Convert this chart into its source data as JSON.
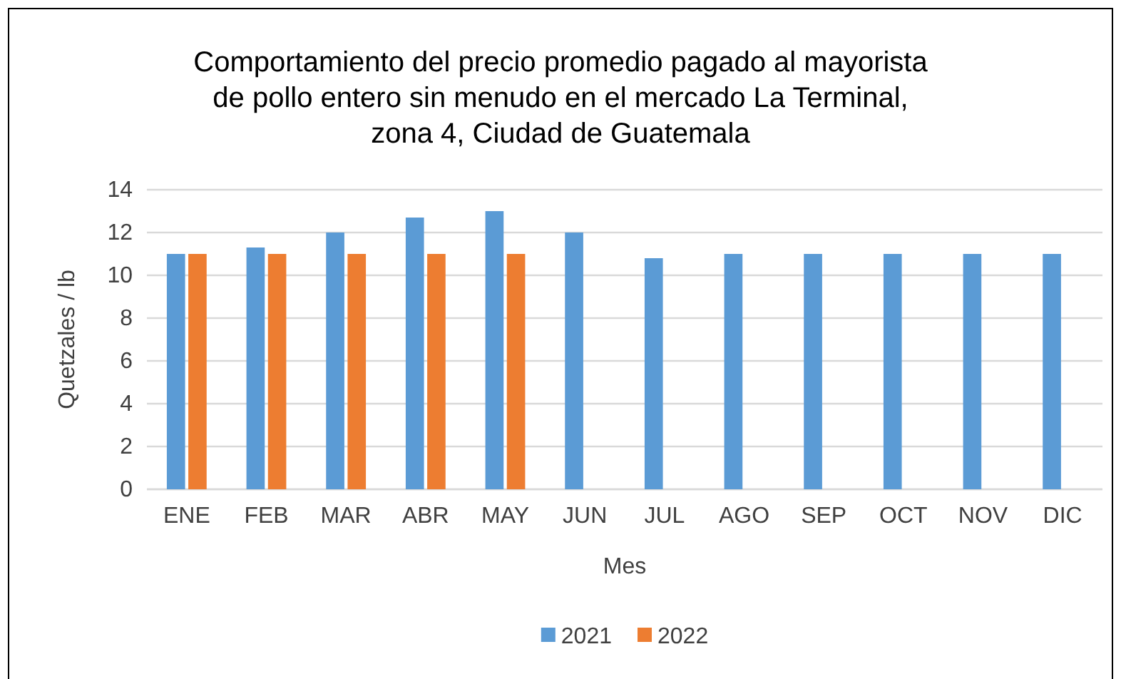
{
  "chart_data": {
    "type": "bar",
    "title": "Comportamiento del precio promedio pagado al mayorista\nde pollo entero sin menudo  en el mercado La Terminal,\nzona 4, Ciudad de Guatemala",
    "xlabel": "Mes",
    "ylabel": "Quetzales / lb",
    "categories": [
      "ENE",
      "FEB",
      "MAR",
      "ABR",
      "MAY",
      "JUN",
      "JUL",
      "AGO",
      "SEP",
      "OCT",
      "NOV",
      "DIC"
    ],
    "series": [
      {
        "name": "2021",
        "color": "#5b9bd5",
        "values": [
          11,
          11.3,
          12,
          12.7,
          13,
          12,
          10.8,
          11,
          11,
          11,
          11,
          11
        ]
      },
      {
        "name": "2022",
        "color": "#ed7d31",
        "values": [
          11,
          11,
          11,
          11,
          11,
          null,
          null,
          null,
          null,
          null,
          null,
          null
        ]
      }
    ],
    "ylim": [
      0,
      14
    ],
    "yticks": [
      0,
      2,
      4,
      6,
      8,
      10,
      12,
      14
    ],
    "grid": "y",
    "legend": "bottom"
  }
}
